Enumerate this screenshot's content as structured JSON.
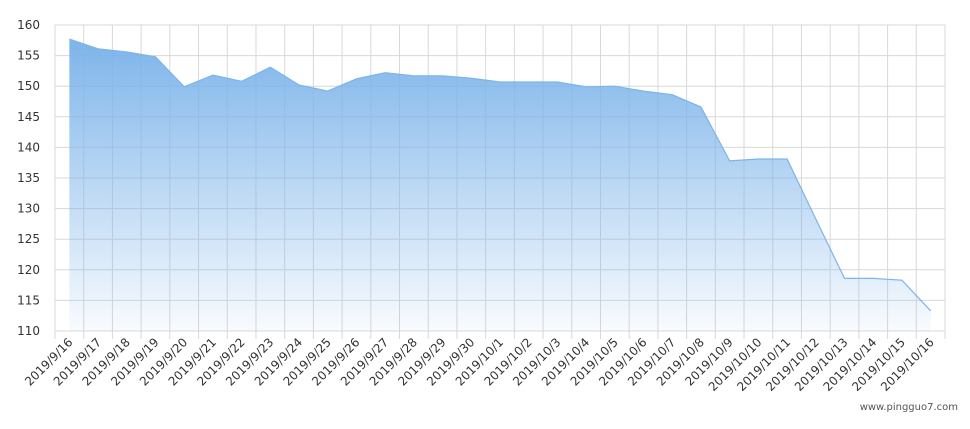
{
  "chart_data": {
    "type": "area",
    "categories": [
      "2019/9/16",
      "2019/9/17",
      "2019/9/18",
      "2019/9/19",
      "2019/9/20",
      "2019/9/21",
      "2019/9/22",
      "2019/9/23",
      "2019/9/24",
      "2019/9/25",
      "2019/9/26",
      "2019/9/27",
      "2019/9/28",
      "2019/9/29",
      "2019/9/30",
      "2019/10/1",
      "2019/10/2",
      "2019/10/3",
      "2019/10/4",
      "2019/10/5",
      "2019/10/6",
      "2019/10/7",
      "2019/10/8",
      "2019/10/9",
      "2019/10/10",
      "2019/10/11",
      "2019/10/12",
      "2019/10/13",
      "2019/10/14",
      "2019/10/15",
      "2019/10/16"
    ],
    "values": [
      157.7,
      156.1,
      155.6,
      154.8,
      149.9,
      151.8,
      150.8,
      153.1,
      150.2,
      149.2,
      151.2,
      152.2,
      151.7,
      151.7,
      151.3,
      150.7,
      150.7,
      150.7,
      149.9,
      150.0,
      149.2,
      148.6,
      146.6,
      137.8,
      138.1,
      138.1,
      128.3,
      118.6,
      118.6,
      118.3,
      113.3
    ],
    "color": "#7db4ea",
    "ylim": [
      110,
      160
    ],
    "yticks": [
      110,
      115,
      120,
      125,
      130,
      135,
      140,
      145,
      150,
      155,
      160
    ],
    "grid": true,
    "watermark": "www.pingguo7.com"
  }
}
